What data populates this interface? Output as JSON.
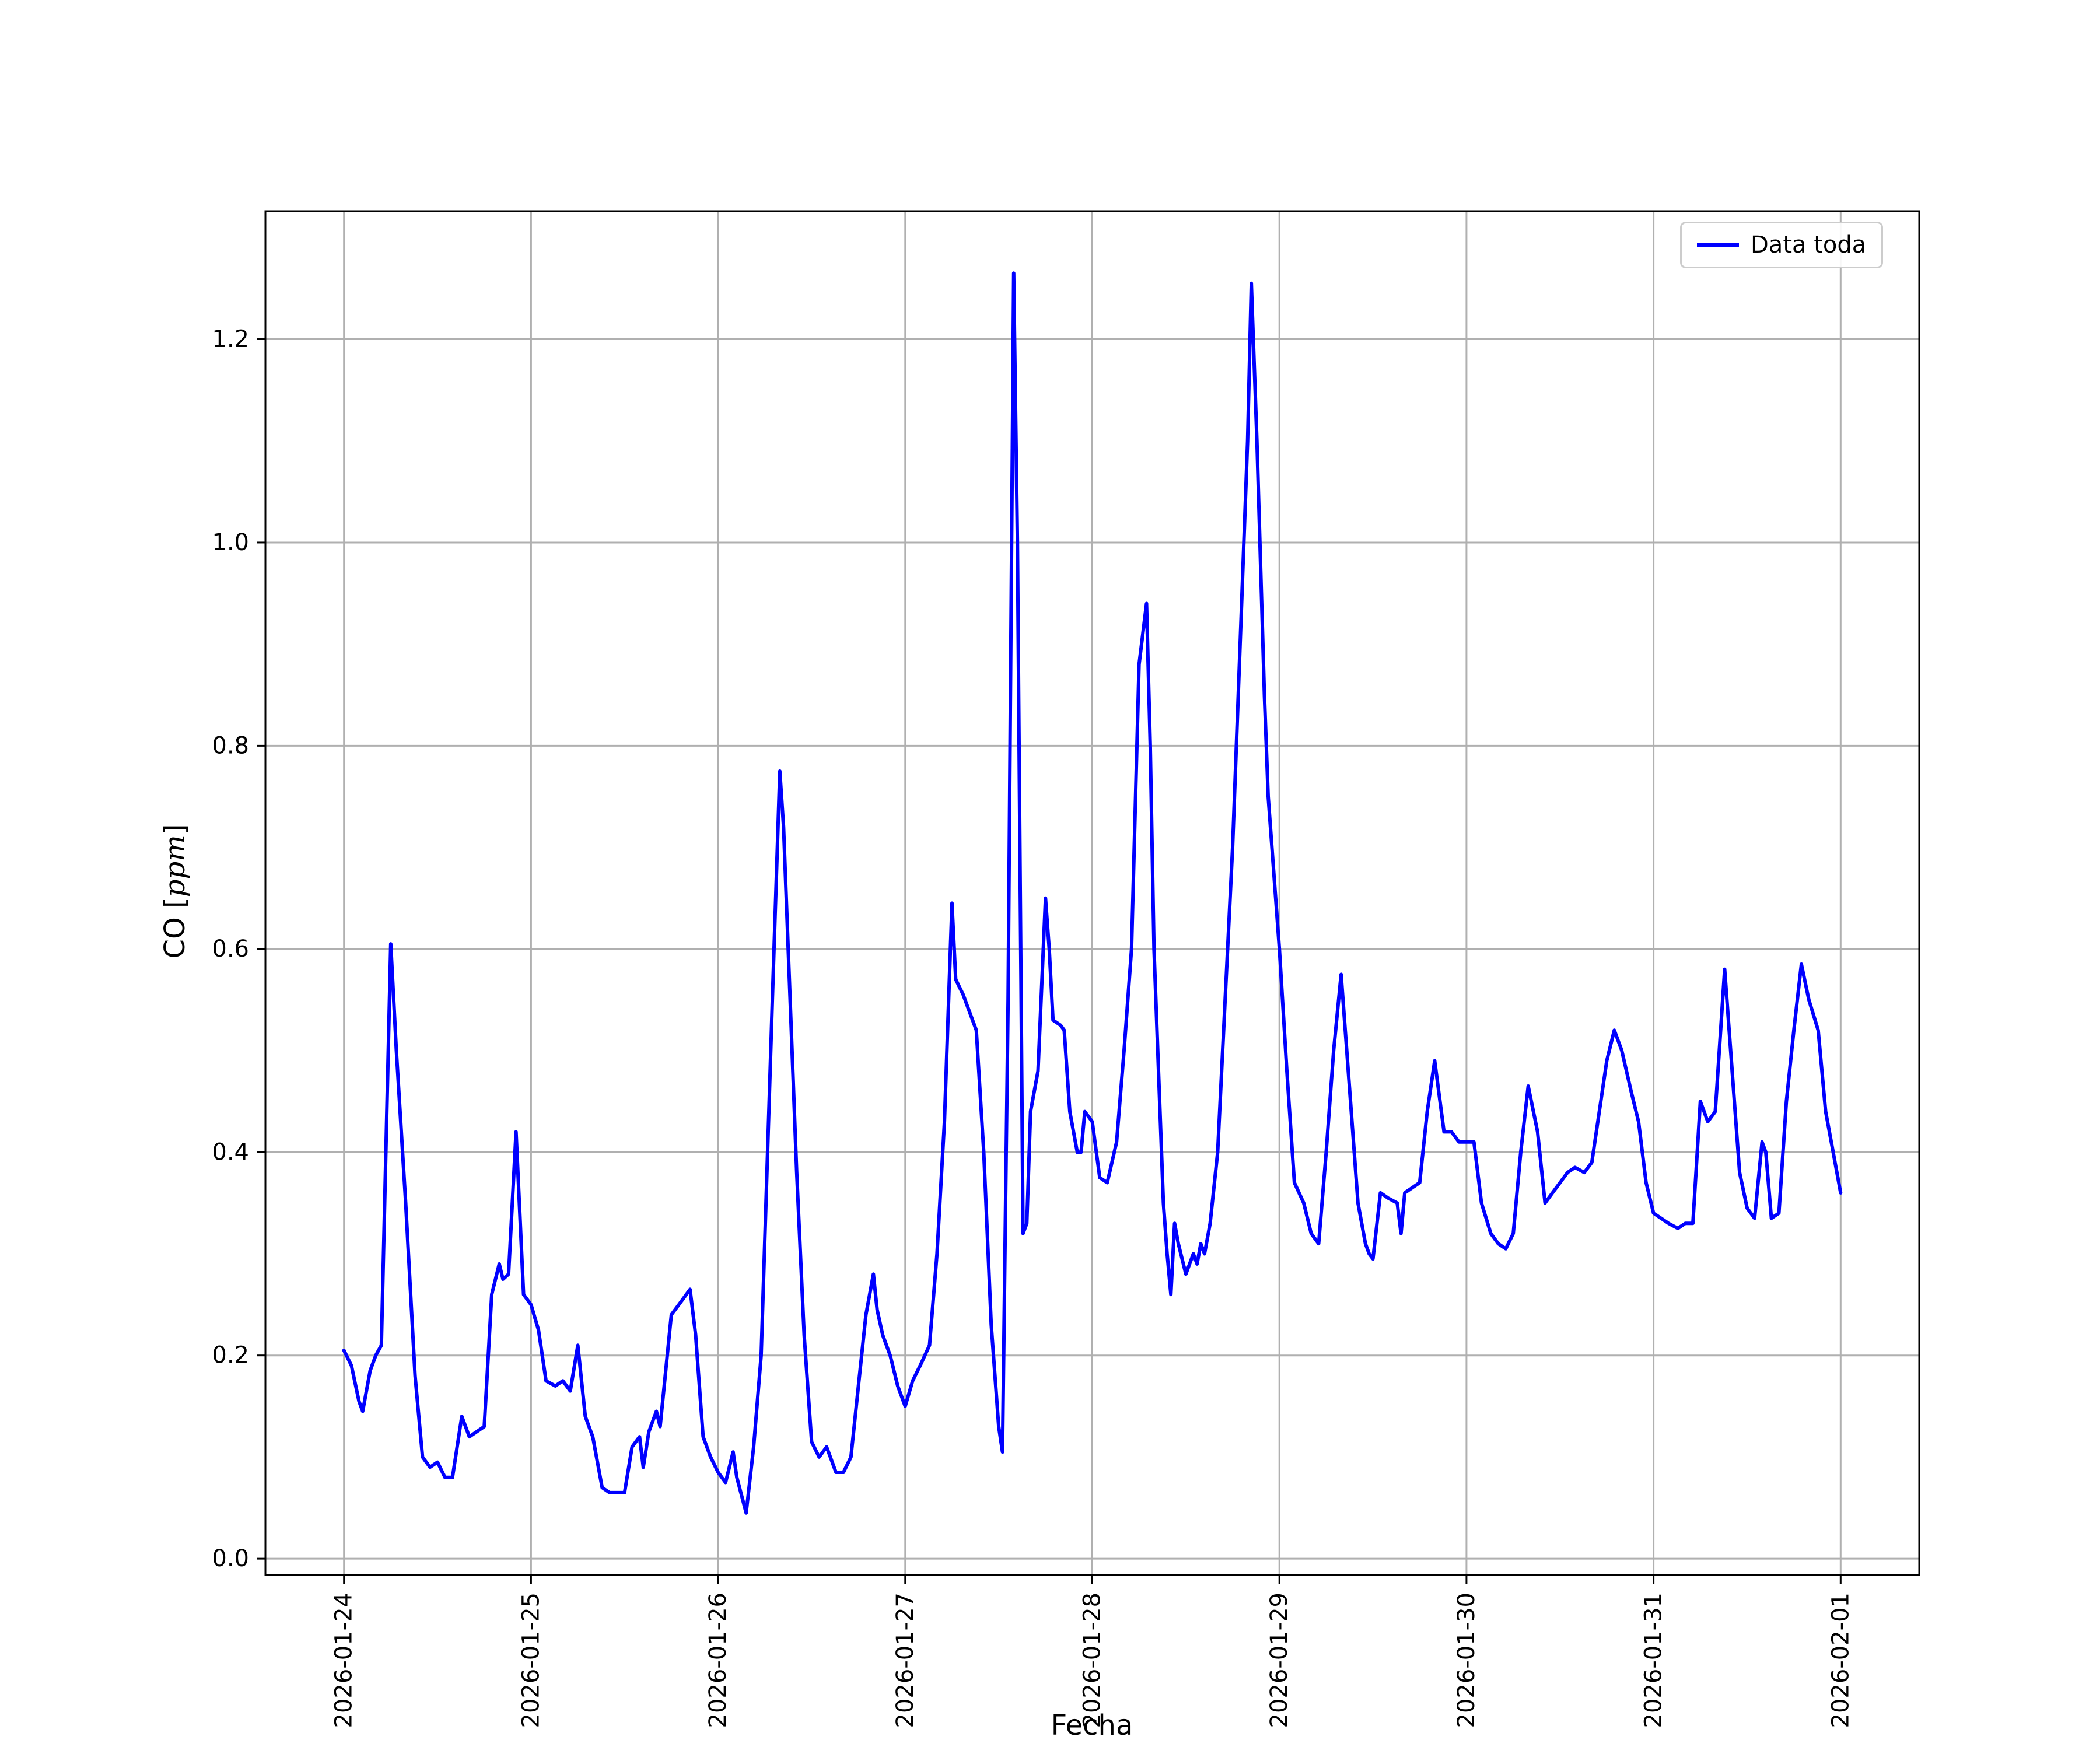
{
  "figure": {
    "background": "#ffffff"
  },
  "chart_data": {
    "type": "line",
    "title": "",
    "xlabel": "Fecha",
    "ylabel": "CO [ppm]",
    "ylabel_parts": {
      "prefix": "CO [",
      "math": "ppm",
      "suffix": "]"
    },
    "legend": {
      "position": "upper right",
      "entries": [
        "Data toda"
      ]
    },
    "line_color": "#0000ff",
    "grid": true,
    "grid_color": "#b0b0b0",
    "axis_color": "#000000",
    "x_ticks": [
      0,
      1,
      2,
      3,
      4,
      5,
      6,
      7,
      8
    ],
    "x_tick_labels": [
      "2026-01-24",
      "2026-01-25",
      "2026-01-26",
      "2026-01-27",
      "2026-01-28",
      "2026-01-29",
      "2026-01-30",
      "2026-01-31",
      "2026-02-01"
    ],
    "y_ticks": [
      0.0,
      0.2,
      0.4,
      0.6,
      0.8,
      1.0,
      1.2
    ],
    "y_tick_labels": [
      "0.0",
      "0.2",
      "0.4",
      "0.6",
      "0.8",
      "1.0",
      "1.2"
    ],
    "xlim_days": [
      -0.42,
      8.42
    ],
    "ylim": [
      -0.016,
      1.326
    ],
    "series": [
      {
        "name": "Data toda",
        "x": [
          0.0,
          0.04,
          0.08,
          0.1,
          0.14,
          0.17,
          0.2,
          0.25,
          0.28,
          0.33,
          0.38,
          0.42,
          0.46,
          0.5,
          0.54,
          0.58,
          0.63,
          0.67,
          0.71,
          0.75,
          0.79,
          0.83,
          0.85,
          0.88,
          0.92,
          0.96,
          1.0,
          1.04,
          1.08,
          1.13,
          1.17,
          1.21,
          1.25,
          1.29,
          1.33,
          1.38,
          1.42,
          1.46,
          1.5,
          1.54,
          1.58,
          1.6,
          1.63,
          1.67,
          1.69,
          1.75,
          1.79,
          1.83,
          1.85,
          1.88,
          1.92,
          1.96,
          2.0,
          2.04,
          2.08,
          2.1,
          2.15,
          2.19,
          2.23,
          2.29,
          2.33,
          2.35,
          2.42,
          2.46,
          2.5,
          2.54,
          2.58,
          2.63,
          2.67,
          2.71,
          2.75,
          2.79,
          2.83,
          2.85,
          2.88,
          2.92,
          2.96,
          3.0,
          3.04,
          3.08,
          3.13,
          3.17,
          3.21,
          3.25,
          3.27,
          3.31,
          3.33,
          3.38,
          3.42,
          3.46,
          3.5,
          3.52,
          3.55,
          3.58,
          3.6,
          3.63,
          3.65,
          3.67,
          3.71,
          3.75,
          3.77,
          3.79,
          3.83,
          3.85,
          3.88,
          3.92,
          3.94,
          3.96,
          4.0,
          4.04,
          4.08,
          4.13,
          4.17,
          4.21,
          4.25,
          4.29,
          4.31,
          4.33,
          4.38,
          4.4,
          4.42,
          4.44,
          4.46,
          4.5,
          4.54,
          4.56,
          4.58,
          4.6,
          4.63,
          4.67,
          4.71,
          4.75,
          4.79,
          4.83,
          4.85,
          4.88,
          4.92,
          4.94,
          4.96,
          5.0,
          5.04,
          5.08,
          5.13,
          5.17,
          5.21,
          5.25,
          5.29,
          5.33,
          5.38,
          5.42,
          5.46,
          5.48,
          5.5,
          5.54,
          5.58,
          5.63,
          5.65,
          5.67,
          5.71,
          5.75,
          5.79,
          5.83,
          5.88,
          5.92,
          5.96,
          6.0,
          6.04,
          6.08,
          6.13,
          6.17,
          6.21,
          6.25,
          6.29,
          6.33,
          6.38,
          6.42,
          6.46,
          6.5,
          6.54,
          6.58,
          6.63,
          6.67,
          6.71,
          6.75,
          6.79,
          6.83,
          6.88,
          6.92,
          6.96,
          7.0,
          7.04,
          7.08,
          7.13,
          7.17,
          7.21,
          7.25,
          7.29,
          7.33,
          7.38,
          7.42,
          7.46,
          7.5,
          7.54,
          7.58,
          7.6,
          7.63,
          7.67,
          7.71,
          7.75,
          7.79,
          7.83,
          7.88,
          7.92,
          7.96,
          8.0
        ],
        "y": [
          0.205,
          0.19,
          0.155,
          0.145,
          0.185,
          0.2,
          0.21,
          0.605,
          0.5,
          0.35,
          0.18,
          0.1,
          0.09,
          0.095,
          0.08,
          0.08,
          0.14,
          0.12,
          0.125,
          0.13,
          0.26,
          0.29,
          0.275,
          0.28,
          0.42,
          0.26,
          0.25,
          0.225,
          0.175,
          0.17,
          0.175,
          0.165,
          0.21,
          0.14,
          0.12,
          0.07,
          0.065,
          0.065,
          0.065,
          0.11,
          0.12,
          0.09,
          0.125,
          0.145,
          0.13,
          0.24,
          0.25,
          0.26,
          0.265,
          0.22,
          0.12,
          0.1,
          0.085,
          0.075,
          0.105,
          0.08,
          0.045,
          0.11,
          0.2,
          0.55,
          0.775,
          0.72,
          0.38,
          0.22,
          0.115,
          0.1,
          0.11,
          0.085,
          0.085,
          0.1,
          0.17,
          0.24,
          0.28,
          0.245,
          0.22,
          0.2,
          0.17,
          0.15,
          0.175,
          0.19,
          0.21,
          0.3,
          0.43,
          0.645,
          0.57,
          0.555,
          0.545,
          0.52,
          0.4,
          0.23,
          0.13,
          0.105,
          0.55,
          1.265,
          1.0,
          0.32,
          0.33,
          0.44,
          0.48,
          0.65,
          0.6,
          0.53,
          0.525,
          0.52,
          0.44,
          0.4,
          0.4,
          0.44,
          0.43,
          0.375,
          0.37,
          0.41,
          0.5,
          0.6,
          0.88,
          0.94,
          0.8,
          0.6,
          0.35,
          0.3,
          0.26,
          0.33,
          0.31,
          0.28,
          0.3,
          0.29,
          0.31,
          0.3,
          0.33,
          0.4,
          0.55,
          0.7,
          0.9,
          1.1,
          1.255,
          1.1,
          0.85,
          0.75,
          0.7,
          0.6,
          0.48,
          0.37,
          0.35,
          0.32,
          0.31,
          0.4,
          0.5,
          0.575,
          0.45,
          0.35,
          0.31,
          0.3,
          0.295,
          0.36,
          0.355,
          0.35,
          0.32,
          0.36,
          0.365,
          0.37,
          0.44,
          0.49,
          0.42,
          0.42,
          0.41,
          0.41,
          0.41,
          0.35,
          0.32,
          0.31,
          0.305,
          0.32,
          0.4,
          0.465,
          0.42,
          0.35,
          0.36,
          0.37,
          0.38,
          0.385,
          0.38,
          0.39,
          0.44,
          0.49,
          0.52,
          0.5,
          0.46,
          0.43,
          0.37,
          0.34,
          0.335,
          0.33,
          0.325,
          0.33,
          0.33,
          0.45,
          0.43,
          0.44,
          0.58,
          0.48,
          0.38,
          0.345,
          0.335,
          0.41,
          0.4,
          0.335,
          0.34,
          0.45,
          0.52,
          0.585,
          0.55,
          0.52,
          0.44,
          0.4,
          0.36
        ]
      }
    ]
  }
}
